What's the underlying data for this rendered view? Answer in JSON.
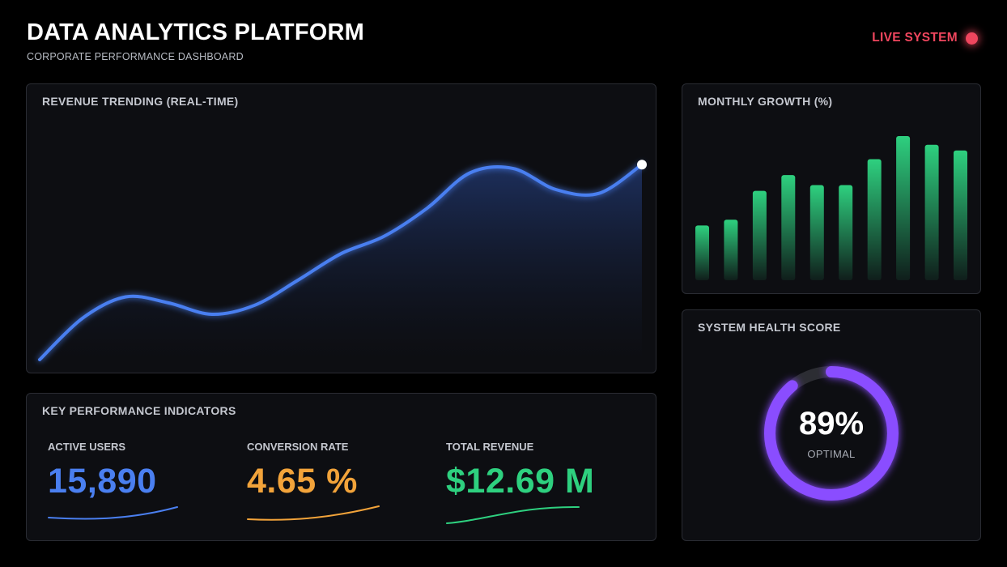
{
  "header": {
    "title": "DATA ANALYTICS PLATFORM",
    "subtitle": "CORPORATE PERFORMANCE DASHBOARD",
    "status_label": "LIVE SYSTEM",
    "status_color": "#f0465e"
  },
  "revenue_chart": {
    "title": "REVENUE TRENDING (REAL-TIME)",
    "line_color": "#4a7ff0"
  },
  "growth_chart": {
    "title": "MONTHLY GROWTH (%)",
    "bar_color": "#2ed07f"
  },
  "kpi": {
    "title": "KEY PERFORMANCE INDICATORS",
    "items": [
      {
        "label": "ACTIVE USERS",
        "value": "15,890",
        "color": "#4a7ff0"
      },
      {
        "label": "CONVERSION RATE",
        "value": "4.65 %",
        "color": "#f2a33a"
      },
      {
        "label": "TOTAL REVENUE",
        "value": "$12.69 M",
        "color": "#2ed07f"
      }
    ]
  },
  "health": {
    "title": "SYSTEM HEALTH SCORE",
    "value": "89%",
    "status": "OPTIMAL",
    "fraction": 0.89,
    "color": "#8a4dff"
  },
  "chart_data": [
    {
      "type": "line",
      "title": "REVENUE TRENDING (REAL-TIME)",
      "x": [
        0,
        1,
        2,
        3,
        4,
        5,
        6,
        7,
        8,
        9,
        10,
        11,
        12,
        13,
        14
      ],
      "values": [
        0.0,
        0.55,
        0.83,
        0.75,
        0.6,
        0.72,
        1.05,
        1.4,
        1.63,
        2.0,
        2.47,
        2.53,
        2.25,
        2.2,
        2.58
      ],
      "ylim": [
        0,
        3
      ],
      "grid": false,
      "fill": true
    },
    {
      "type": "bar",
      "title": "MONTHLY GROWTH (%)",
      "values": [
        38,
        42,
        62,
        73,
        66,
        66,
        84,
        100,
        94,
        90
      ],
      "ylim": [
        0,
        100
      ],
      "grid": false
    }
  ]
}
